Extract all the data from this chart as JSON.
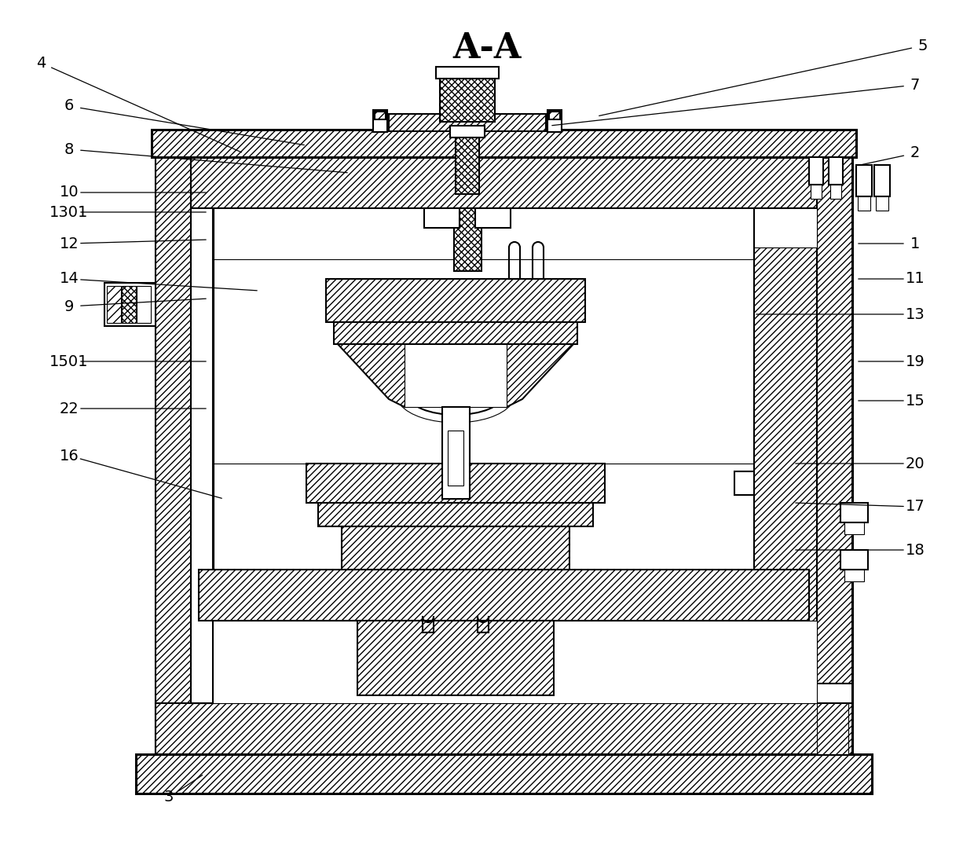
{
  "title": "A-A",
  "title_fontsize": 32,
  "bg_color": "#ffffff",
  "line_color": "#000000",
  "figsize": [
    12.4,
    11.01
  ],
  "dpi": 100,
  "labels_info": [
    [
      "1",
      1165,
      310,
      1090,
      310
    ],
    [
      "2",
      1165,
      195,
      1095,
      210
    ],
    [
      "3",
      215,
      1015,
      260,
      985
    ],
    [
      "4",
      52,
      80,
      310,
      195
    ],
    [
      "5",
      1175,
      58,
      760,
      148
    ],
    [
      "6",
      88,
      135,
      390,
      185
    ],
    [
      "7",
      1165,
      108,
      700,
      160
    ],
    [
      "8",
      88,
      190,
      445,
      220
    ],
    [
      "9",
      88,
      390,
      265,
      380
    ],
    [
      "10",
      88,
      245,
      265,
      245
    ],
    [
      "11",
      1165,
      355,
      1090,
      355
    ],
    [
      "12",
      88,
      310,
      265,
      305
    ],
    [
      "13",
      1165,
      400,
      960,
      400
    ],
    [
      "14",
      88,
      355,
      330,
      370
    ],
    [
      "15",
      1165,
      510,
      1090,
      510
    ],
    [
      "16",
      88,
      580,
      285,
      635
    ],
    [
      "17",
      1165,
      645,
      1010,
      640
    ],
    [
      "18",
      1165,
      700,
      1010,
      700
    ],
    [
      "19",
      1165,
      460,
      1090,
      460
    ],
    [
      "20",
      1165,
      590,
      1010,
      590
    ],
    [
      "22",
      88,
      520,
      265,
      520
    ],
    [
      "1301",
      88,
      270,
      265,
      270
    ],
    [
      "1501",
      88,
      460,
      265,
      460
    ]
  ]
}
